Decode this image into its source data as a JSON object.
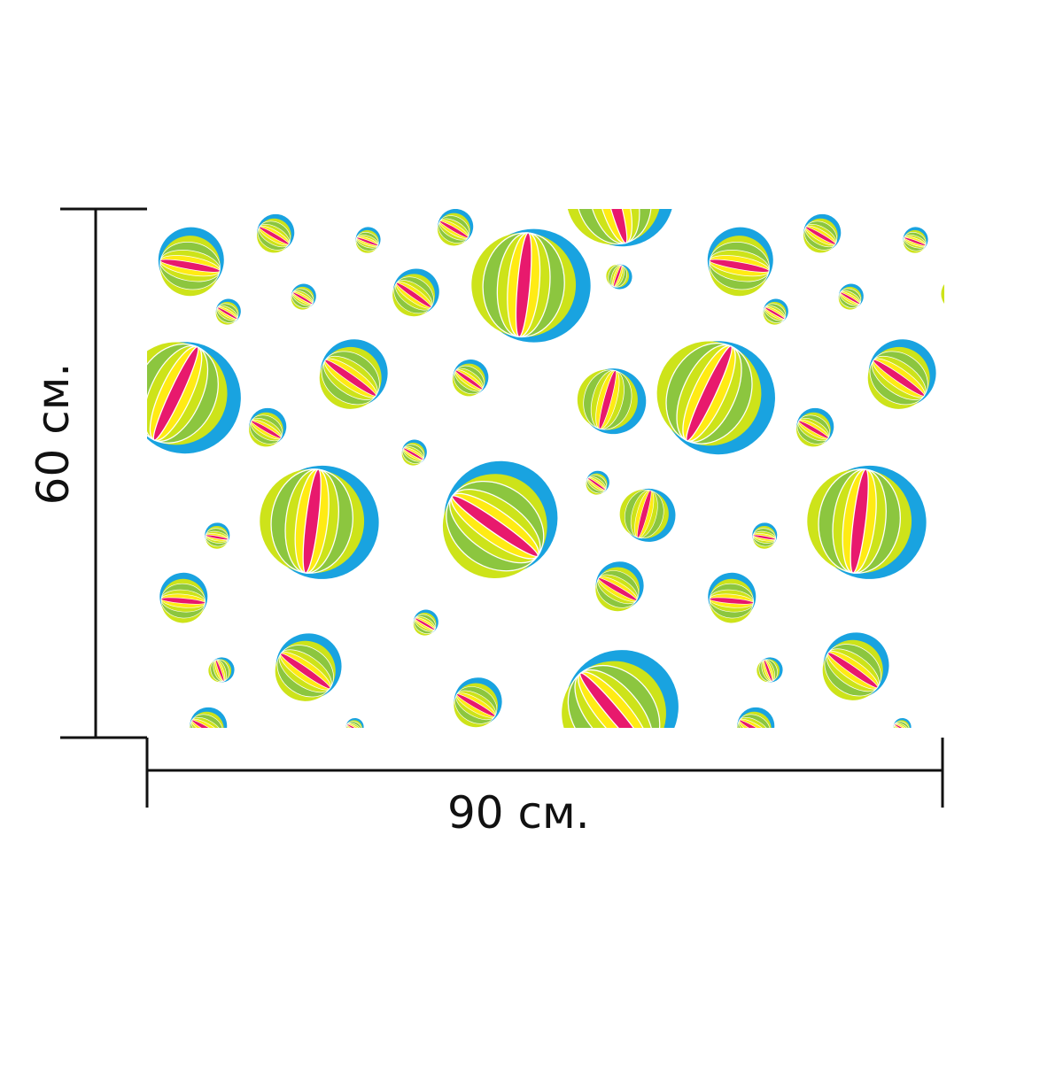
{
  "dimensions": {
    "width_label": "90 см.",
    "height_label": "60 см."
  },
  "pattern": {
    "motif": "beach-ball",
    "background": "#ffffff",
    "colors": {
      "shadow_blue": "#19a3e0",
      "light_green": "#cde31a",
      "green": "#8cc63f",
      "yellow": "#ffeb14",
      "pink": "#e8196d",
      "stripe_outline": "#ffffff"
    }
  },
  "colors": {
    "dimension_line": "#111111",
    "label_text": "#111111"
  }
}
